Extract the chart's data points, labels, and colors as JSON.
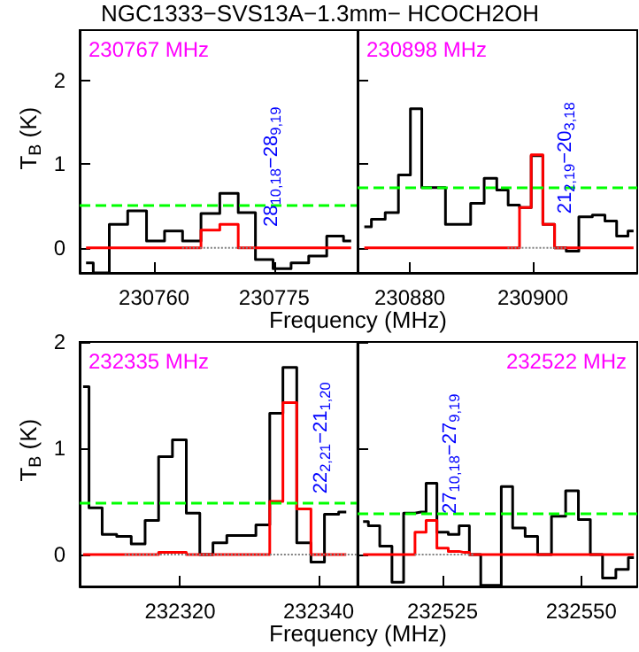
{
  "chart_data": [
    {
      "type": "step",
      "title": "NGC1333−SVS13A−1.3mm−  HCOCH2OH",
      "xlabel": "Frequency (MHz)",
      "ylabel": "T$_{B}$ (K)",
      "xlim": [
        230750.7,
        230785.4
      ],
      "xticks": [
        230760,
        230775
      ],
      "ylim": [
        -0.3,
        2.6
      ],
      "yticks": [
        0,
        1,
        2
      ],
      "annotations": [
        "230767 MHz",
        "28$_{10,18}$−28$_{9,19}$"
      ],
      "ref_lines": [
        {
          "axis": "y",
          "value": 0.5,
          "color": "#00ff00",
          "line_style": "dashed"
        }
      ],
      "series": [
        {
          "color": "#000000",
          "x": [
            230751.5,
            230753.3,
            230755.5,
            230757.9,
            230760.2,
            230762.4,
            230764.7,
            230767.0,
            230769.4,
            230771.6,
            230773.7,
            230776.0,
            230778.2,
            230780.4,
            230782.7,
            230784.6
          ],
          "values": [
            -0.18,
            -0.3,
            0.28,
            0.44,
            0.08,
            0.2,
            0.08,
            0.41,
            0.65,
            0.42,
            -0.14,
            -0.25,
            -0.18,
            -0.1,
            0.14,
            0.08
          ]
        },
        {
          "color": "#ff0000",
          "x": [
            230751.5,
            230753.3,
            230755.5,
            230757.9,
            230760.2,
            230762.4,
            230764.7,
            230767.0,
            230769.4,
            230771.6,
            230773.7,
            230776.0,
            230778.2,
            230780.4,
            230782.7,
            230784.6
          ],
          "values": [
            0,
            0,
            0,
            0,
            0,
            0,
            0,
            0.21,
            0.28,
            0,
            0,
            0,
            0,
            0,
            0,
            0
          ]
        },
        {
          "type": "line",
          "color": "#808080",
          "line_style": "dotted",
          "x": [
            230763.5,
            230772.6
          ],
          "values": [
            0,
            0
          ]
        }
      ]
    },
    {
      "type": "step",
      "tick_labels": "x",
      "xlim": [
        230871.5,
        230917
      ],
      "xticks": [
        230880,
        230900
      ],
      "ylim": [
        -0.3,
        2.6
      ],
      "yticks": [
        0,
        1,
        2
      ],
      "annotations": [
        "230898 MHz",
        "21$_{2,19}$−20$_{3,18}$"
      ],
      "ref_lines": [
        {
          "axis": "y",
          "value": 0.72,
          "color": "#00ff00",
          "line_style": "dashed"
        }
      ],
      "series": [
        {
          "color": "#000000",
          "x": [
            230872.6,
            230874.9,
            230877.1,
            230879.2,
            230881.0,
            230882.9,
            230884.8,
            230886.8,
            230888.8,
            230891.0,
            230893.2,
            230895.1,
            230896.9,
            230898.8,
            230900.7,
            230902.6,
            230904.5,
            230906.4,
            230908.6,
            230910.8,
            230912.7,
            230914.6,
            230916.4
          ],
          "values": [
            0.25,
            0.34,
            0.42,
            0.87,
            1.66,
            0.72,
            0.72,
            0.28,
            0.28,
            0.53,
            0.83,
            0.69,
            0.51,
            0.48,
            1.1,
            0.28,
            0,
            -0.04,
            0.37,
            0.39,
            0.32,
            0.14,
            0.2
          ]
        },
        {
          "color": "#ff0000",
          "x": [
            230872.6,
            230874.9,
            230877.1,
            230879.2,
            230881.0,
            230882.9,
            230884.8,
            230886.8,
            230888.8,
            230891.0,
            230893.2,
            230895.1,
            230896.9,
            230898.8,
            230900.7,
            230902.6,
            230904.5,
            230906.4,
            230908.6,
            230910.8,
            230912.7,
            230914.6,
            230916.4
          ],
          "values": [
            0,
            0,
            0,
            0,
            0,
            0,
            0,
            0,
            0,
            0,
            0,
            0,
            0,
            0.48,
            1.11,
            0.28,
            0,
            0,
            0,
            0,
            0,
            0,
            0
          ]
        },
        {
          "type": "line",
          "color": "#808080",
          "line_style": "dotted",
          "x": [
            230895.9,
            230905.4
          ],
          "values": [
            0,
            0
          ]
        }
      ]
    },
    {
      "type": "step",
      "xlabel": "Frequency (MHz)",
      "ylabel": "T$_{B}$ (K)",
      "xlim": [
        232305.5,
        232345.6
      ],
      "xticks": [
        232320,
        232340
      ],
      "ylim": [
        -0.3,
        2
      ],
      "yticks": [
        0,
        1,
        2
      ],
      "annotations": [
        "232335 MHz",
        "22$_{2,21}$−21$_{1,20}$"
      ],
      "ref_lines": [
        {
          "axis": "y",
          "value": 0.49,
          "color": "#00ff00",
          "line_style": "dashed"
        }
      ],
      "series": [
        {
          "color": "#000000",
          "x": [
            232306.0,
            232307.7,
            232309.8,
            232311.9,
            232314.0,
            232315.9,
            232317.9,
            232319.9,
            232321.9,
            232323.8,
            232325.7,
            232327.8,
            232329.9,
            232332.0,
            232333.9,
            232335.8,
            232337.9,
            232339.9,
            232341.8,
            232344.0
          ],
          "values": [
            1.58,
            0.44,
            0.19,
            0.17,
            0.1,
            0.32,
            0.92,
            1.08,
            0.39,
            0,
            0.11,
            0.18,
            0.18,
            0.28,
            1.33,
            1.76,
            0.11,
            -0.07,
            0.38,
            0.4
          ]
        },
        {
          "color": "#ff0000",
          "x": [
            232306.0,
            232307.7,
            232309.8,
            232311.9,
            232314.0,
            232315.9,
            232317.9,
            232319.9,
            232321.9,
            232323.8,
            232325.7,
            232327.8,
            232329.9,
            232332.0,
            232333.9,
            232335.8,
            232337.9,
            232339.9,
            232341.8,
            232344.0
          ],
          "values": [
            0,
            0,
            0,
            0,
            0,
            0,
            0.02,
            0.02,
            0,
            0,
            0,
            0,
            0,
            0,
            0.5,
            1.43,
            0.43,
            0,
            0,
            0
          ]
        },
        {
          "type": "line",
          "color": "#808080",
          "line_style": "dotted",
          "x": [
            232312,
            232345.6
          ],
          "values": [
            0,
            0
          ]
        }
      ]
    },
    {
      "type": "step",
      "tick_labels": "x",
      "xlim": [
        232509.7,
        232560.1
      ],
      "xticks": [
        232525,
        232550
      ],
      "ylim": [
        -0.3,
        2
      ],
      "yticks": [
        0,
        1,
        2
      ],
      "annotations": [
        "232522 MHz",
        "27$_{10,18}$−27$_{9,19}$"
      ],
      "ref_lines": [
        {
          "axis": "y",
          "value": 0.39,
          "color": "#00ff00",
          "line_style": "dashed"
        }
      ],
      "series": [
        {
          "color": "#000000",
          "x": [
            232510.7,
            232512.6,
            232514.8,
            232517.0,
            232519.0,
            232521.1,
            232523.0,
            232525.0,
            232527.1,
            232528.9,
            232530.8,
            232533.0,
            232534.7,
            232536.5,
            232538.8,
            232541.0,
            232543.3,
            232546.0,
            232548.4,
            232550.6,
            232552.7,
            232555.0,
            232557.5,
            232559.5
          ],
          "values": [
            0.31,
            0.27,
            0.08,
            -0.26,
            0.39,
            0.4,
            0.67,
            0.21,
            0.19,
            0.27,
            0,
            -0.29,
            -0.29,
            0.64,
            0.25,
            0.17,
            0,
            0.36,
            0.6,
            0.33,
            0,
            -0.22,
            -0.14,
            -0.03
          ]
        },
        {
          "color": "#ff0000",
          "x": [
            232510.7,
            232512.6,
            232514.8,
            232517.0,
            232519.0,
            232521.1,
            232523.0,
            232525.0,
            232527.1,
            232528.9,
            232530.8,
            232533.0,
            232534.7,
            232536.5,
            232538.8,
            232541.0,
            232543.3,
            232546.0,
            232548.4,
            232550.6,
            232552.7,
            232555.0,
            232557.5,
            232559.5
          ],
          "values": [
            0,
            0,
            0,
            0,
            0,
            0.21,
            0.32,
            0.06,
            0.03,
            0.02,
            0,
            0,
            0,
            0,
            0,
            0,
            0,
            0,
            0,
            0,
            0,
            0,
            0,
            0
          ]
        },
        {
          "type": "line",
          "color": "#808080",
          "line_style": "dotted",
          "x": [
            232520,
            232530.7
          ],
          "values": [
            0,
            0
          ]
        }
      ]
    }
  ]
}
